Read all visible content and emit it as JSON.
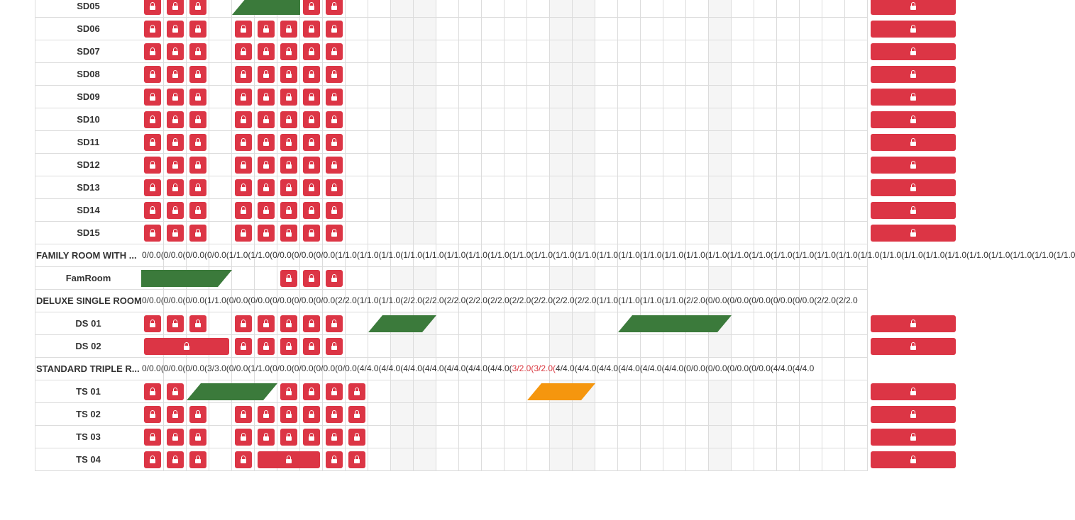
{
  "colors": {
    "block": "#dc3545",
    "booked": "#3b7a3b",
    "pending": "#f5960e",
    "grid": "#dcdcdc",
    "shaded": "#f5f5f5"
  },
  "icon": "lock-icon",
  "shaded_columns": [
    11,
    12,
    18,
    19,
    25
  ],
  "rows": [
    {
      "kind": "room",
      "label": "SD05",
      "blocks": [
        [
          0,
          0
        ],
        [
          1,
          1
        ],
        [
          2,
          2
        ],
        [
          7,
          7
        ],
        [
          8,
          8
        ],
        [
          32,
          35
        ]
      ],
      "bookings": [
        {
          "start": 4,
          "end": 7,
          "color": "green",
          "shape": "slant-left"
        }
      ]
    },
    {
      "kind": "room",
      "label": "SD06",
      "blocks": [
        [
          0,
          0
        ],
        [
          1,
          1
        ],
        [
          2,
          2
        ],
        [
          4,
          4
        ],
        [
          5,
          5
        ],
        [
          6,
          6
        ],
        [
          7,
          7
        ],
        [
          8,
          8
        ],
        [
          32,
          35
        ]
      ],
      "bookings": []
    },
    {
      "kind": "room",
      "label": "SD07",
      "blocks": [
        [
          0,
          0
        ],
        [
          1,
          1
        ],
        [
          2,
          2
        ],
        [
          4,
          4
        ],
        [
          5,
          5
        ],
        [
          6,
          6
        ],
        [
          7,
          7
        ],
        [
          8,
          8
        ],
        [
          32,
          35
        ]
      ],
      "bookings": []
    },
    {
      "kind": "room",
      "label": "SD08",
      "blocks": [
        [
          0,
          0
        ],
        [
          1,
          1
        ],
        [
          2,
          2
        ],
        [
          4,
          4
        ],
        [
          5,
          5
        ],
        [
          6,
          6
        ],
        [
          7,
          7
        ],
        [
          8,
          8
        ],
        [
          32,
          35
        ]
      ],
      "bookings": []
    },
    {
      "kind": "room",
      "label": "SD09",
      "blocks": [
        [
          0,
          0
        ],
        [
          1,
          1
        ],
        [
          2,
          2
        ],
        [
          4,
          4
        ],
        [
          5,
          5
        ],
        [
          6,
          6
        ],
        [
          7,
          7
        ],
        [
          8,
          8
        ],
        [
          32,
          35
        ]
      ],
      "bookings": []
    },
    {
      "kind": "room",
      "label": "SD10",
      "blocks": [
        [
          0,
          0
        ],
        [
          1,
          1
        ],
        [
          2,
          2
        ],
        [
          4,
          4
        ],
        [
          5,
          5
        ],
        [
          6,
          6
        ],
        [
          7,
          7
        ],
        [
          8,
          8
        ],
        [
          32,
          35
        ]
      ],
      "bookings": []
    },
    {
      "kind": "room",
      "label": "SD11",
      "blocks": [
        [
          0,
          0
        ],
        [
          1,
          1
        ],
        [
          2,
          2
        ],
        [
          4,
          4
        ],
        [
          5,
          5
        ],
        [
          6,
          6
        ],
        [
          7,
          7
        ],
        [
          8,
          8
        ],
        [
          32,
          35
        ]
      ],
      "bookings": []
    },
    {
      "kind": "room",
      "label": "SD12",
      "blocks": [
        [
          0,
          0
        ],
        [
          1,
          1
        ],
        [
          2,
          2
        ],
        [
          4,
          4
        ],
        [
          5,
          5
        ],
        [
          6,
          6
        ],
        [
          7,
          7
        ],
        [
          8,
          8
        ],
        [
          32,
          35
        ]
      ],
      "bookings": []
    },
    {
      "kind": "room",
      "label": "SD13",
      "blocks": [
        [
          0,
          0
        ],
        [
          1,
          1
        ],
        [
          2,
          2
        ],
        [
          4,
          4
        ],
        [
          5,
          5
        ],
        [
          6,
          6
        ],
        [
          7,
          7
        ],
        [
          8,
          8
        ],
        [
          32,
          35
        ]
      ],
      "bookings": []
    },
    {
      "kind": "room",
      "label": "SD14",
      "blocks": [
        [
          0,
          0
        ],
        [
          1,
          1
        ],
        [
          2,
          2
        ],
        [
          4,
          4
        ],
        [
          5,
          5
        ],
        [
          6,
          6
        ],
        [
          7,
          7
        ],
        [
          8,
          8
        ],
        [
          32,
          35
        ]
      ],
      "bookings": []
    },
    {
      "kind": "room",
      "label": "SD15",
      "blocks": [
        [
          0,
          0
        ],
        [
          1,
          1
        ],
        [
          2,
          2
        ],
        [
          4,
          4
        ],
        [
          5,
          5
        ],
        [
          6,
          6
        ],
        [
          7,
          7
        ],
        [
          8,
          8
        ],
        [
          32,
          35
        ]
      ],
      "bookings": []
    },
    {
      "kind": "type",
      "label": "FAMILY ROOM WITH ...",
      "availability": "0/0.0(0/0.0(0/0.0(0/0.0(1/1.0(1/1.0(0/0.0(0/0.0(0/0.0(1/1.0(1/1.0(1/1.0(1/1.0(1/1.0(1/1.0(1/1.0(1/1.0(1/1.0(1/1.0(1/1.0(1/1.0(1/1.0(1/1.0(1/1.0(1/1.0(1/1.0(1/1.0(1/1.0(1/1.0(1/1.0(1/1.0(1/1.0(1/1.0(1/1.0(1/1.0(1/1.0(1/1.0(1/1.0(1/1.0(1/1.0(1/1.0(1/1.0(1/1.0"
    },
    {
      "kind": "room",
      "label": "FamRoom",
      "blocks": [
        [
          6,
          6
        ],
        [
          7,
          7
        ],
        [
          8,
          8
        ]
      ],
      "bookings": [
        {
          "start": 0,
          "end": 4,
          "color": "green",
          "shape": "slant-right"
        }
      ]
    },
    {
      "kind": "type",
      "label": "DELUXE SINGLE ROOM",
      "availability": "0/0.0(0/0.0(0/0.0(1/1.0(0/0.0(0/0.0(0/0.0(0/0.0(0/0.0(2/2.0(1/1.0(1/1.0(2/2.0(2/2.0(2/2.0(2/2.0(2/2.0(2/2.0(2/2.0(2/2.0(2/2.0(1/1.0(1/1.0(1/1.0(1/1.0(2/2.0(0/0.0(0/0.0(0/0.0(0/0.0(0/0.0(2/2.0(2/2.0"
    },
    {
      "kind": "room",
      "label": "DS 01",
      "blocks": [
        [
          0,
          0
        ],
        [
          1,
          1
        ],
        [
          2,
          2
        ],
        [
          4,
          4
        ],
        [
          5,
          5
        ],
        [
          6,
          6
        ],
        [
          7,
          7
        ],
        [
          8,
          8
        ],
        [
          32,
          35
        ]
      ],
      "bookings": [
        {
          "start": 10,
          "end": 13,
          "color": "green",
          "shape": "slant"
        },
        {
          "start": 21,
          "end": 26,
          "color": "green",
          "shape": "slant"
        }
      ]
    },
    {
      "kind": "room",
      "label": "DS 02",
      "blocks": [
        [
          0,
          3
        ],
        [
          4,
          4
        ],
        [
          5,
          5
        ],
        [
          6,
          6
        ],
        [
          7,
          7
        ],
        [
          8,
          8
        ],
        [
          32,
          35
        ]
      ],
      "bookings": []
    },
    {
      "kind": "type",
      "label": "STANDARD TRIPLE R...",
      "availability_parts": [
        {
          "text": "0/0.0(0/0.0(0/0.0(3/3.0(0/0.0(1/1.0(0/0.0(0/0.0(0/0.0(0/0.0(4/4.0(4/4.0(4/4.0(4/4.0(4/4.0(4/4.0(4/4.0(",
          "red": false
        },
        {
          "text": "3/2.0(3/2.0(",
          "red": true
        },
        {
          "text": "4/4.0(4/4.0(4/4.0(4/4.0(4/4.0(4/4.0(0/0.0(0/0.0(0/0.0(0/0.0(4/4.0(4/4.0",
          "red": false
        }
      ]
    },
    {
      "kind": "room",
      "label": "TS 01",
      "blocks": [
        [
          0,
          0
        ],
        [
          1,
          1
        ],
        [
          6,
          6
        ],
        [
          7,
          7
        ],
        [
          8,
          8
        ],
        [
          9,
          9
        ],
        [
          32,
          35
        ]
      ],
      "bookings": [
        {
          "start": 2,
          "end": 6,
          "color": "green",
          "shape": "slant"
        },
        {
          "start": 17,
          "end": 20,
          "color": "orange",
          "shape": "slant"
        }
      ]
    },
    {
      "kind": "room",
      "label": "TS 02",
      "blocks": [
        [
          0,
          0
        ],
        [
          1,
          1
        ],
        [
          2,
          2
        ],
        [
          4,
          4
        ],
        [
          5,
          5
        ],
        [
          6,
          6
        ],
        [
          7,
          7
        ],
        [
          8,
          8
        ],
        [
          9,
          9
        ],
        [
          32,
          35
        ]
      ],
      "bookings": []
    },
    {
      "kind": "room",
      "label": "TS 03",
      "blocks": [
        [
          0,
          0
        ],
        [
          1,
          1
        ],
        [
          2,
          2
        ],
        [
          4,
          4
        ],
        [
          5,
          5
        ],
        [
          6,
          6
        ],
        [
          7,
          7
        ],
        [
          8,
          8
        ],
        [
          9,
          9
        ],
        [
          32,
          35
        ]
      ],
      "bookings": []
    },
    {
      "kind": "room",
      "label": "TS 04",
      "blocks": [
        [
          0,
          0
        ],
        [
          1,
          1
        ],
        [
          2,
          2
        ],
        [
          4,
          4
        ],
        [
          5,
          7
        ],
        [
          8,
          8
        ],
        [
          9,
          9
        ],
        [
          32,
          35
        ]
      ],
      "bookings": []
    }
  ]
}
